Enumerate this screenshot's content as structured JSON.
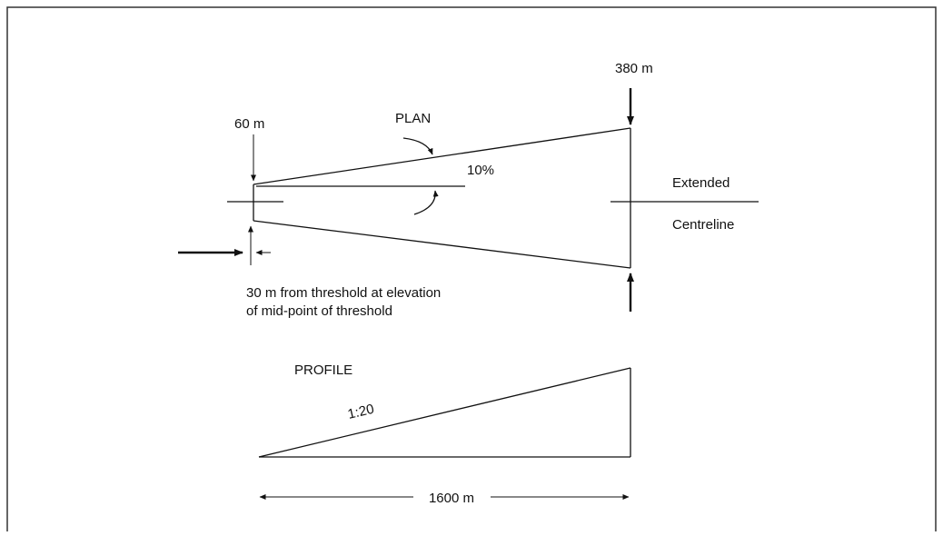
{
  "diagram": {
    "labels": {
      "width_start": "60 m",
      "width_end": "380 m",
      "plan": "PLAN",
      "divergence": "10%",
      "extended": "Extended",
      "centreline": "Centreline",
      "offset_line1": "30 m from threshold at elevation",
      "offset_line2": "of mid-point of threshold",
      "profile": "PROFILE",
      "slope": "1:20",
      "length": "1600 m"
    },
    "colors": {
      "ink": "#111111",
      "frame": "#333333",
      "background": "#ffffff"
    }
  }
}
